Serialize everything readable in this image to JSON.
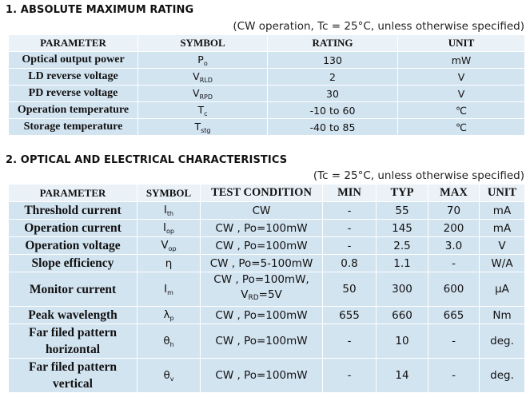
{
  "section1": {
    "title": "1. ABSOLUTE MAXIMUM RATING",
    "note": "(CW operation, Tc = 25°C, unless otherwise specified)",
    "headers": [
      "PARAMETER",
      "SYMBOL",
      "RATING",
      "UNIT"
    ],
    "rows": [
      {
        "parameter": "Optical output power",
        "symbol_main": "P",
        "symbol_sub": "o",
        "rating": "130",
        "unit": "mW"
      },
      {
        "parameter": "LD reverse voltage",
        "symbol_main": "V",
        "symbol_sub": "RLD",
        "rating": "2",
        "unit": "V"
      },
      {
        "parameter": "PD reverse voltage",
        "symbol_main": "V",
        "symbol_sub": "RPD",
        "rating": "30",
        "unit": "V"
      },
      {
        "parameter": "Operation temperature",
        "symbol_main": "T",
        "symbol_sub": "c",
        "rating": "-10 to 60",
        "unit": "℃"
      },
      {
        "parameter": "Storage temperature",
        "symbol_main": "T",
        "symbol_sub": "stg",
        "rating": "-40 to 85",
        "unit": "℃"
      }
    ]
  },
  "section2": {
    "title": "2. OPTICAL AND ELECTRICAL CHARACTERISTICS",
    "note": "(Tc = 25°C, unless otherwise specified)",
    "headers": [
      "PARAMETER",
      "SYMBOL",
      "TEST CONDITION",
      "MIN",
      "TYP",
      "MAX",
      "UNIT"
    ],
    "rows": [
      {
        "parameter_lines": [
          "Threshold current"
        ],
        "symbol_main": "I",
        "symbol_sub": "th",
        "condition": "CW",
        "min": "-",
        "typ": "55",
        "max": "70",
        "unit": "mA"
      },
      {
        "parameter_lines": [
          "Operation current"
        ],
        "symbol_main": "I",
        "symbol_sub": "op",
        "condition": "CW , Po=100mW",
        "min": "-",
        "typ": "145",
        "max": "200",
        "unit": "mA"
      },
      {
        "parameter_lines": [
          "Operation voltage"
        ],
        "symbol_main": "V",
        "symbol_sub": "op",
        "condition": "CW , Po=100mW",
        "min": "-",
        "typ": "2.5",
        "max": "3.0",
        "unit": "V"
      },
      {
        "parameter_lines": [
          "Slope efficiency"
        ],
        "symbol_main": "η",
        "symbol_sub": "",
        "condition": "CW , Po=5-100mW",
        "min": "0.8",
        "typ": "1.1",
        "max": "-",
        "unit": "W/A"
      },
      {
        "parameter_lines": [
          "Monitor current"
        ],
        "symbol_main": "I",
        "symbol_sub": "m",
        "condition_line1": "CW , Po=100mW,",
        "condition_line2_main": "V",
        "condition_line2_sub": "RD",
        "condition_line2_rest": "=5V",
        "min": "50",
        "typ": "300",
        "max": "600",
        "unit": "μA"
      },
      {
        "parameter_lines": [
          "Peak wavelength"
        ],
        "symbol_main": "λ",
        "symbol_sub": "p",
        "condition": "CW , Po=100mW",
        "min": "655",
        "typ": "660",
        "max": "665",
        "unit": "Nm"
      },
      {
        "parameter_lines": [
          "Far filed pattern",
          "horizontal"
        ],
        "symbol_main": "θ",
        "symbol_sub": "h",
        "condition": "CW , Po=100mW",
        "min": "-",
        "typ": "10",
        "max": "-",
        "unit": "deg."
      },
      {
        "parameter_lines": [
          "Far filed pattern",
          "vertical"
        ],
        "symbol_main": "θ",
        "symbol_sub": "v",
        "condition": "CW , Po=100mW",
        "min": "-",
        "typ": "14",
        "max": "-",
        "unit": "deg."
      }
    ]
  }
}
